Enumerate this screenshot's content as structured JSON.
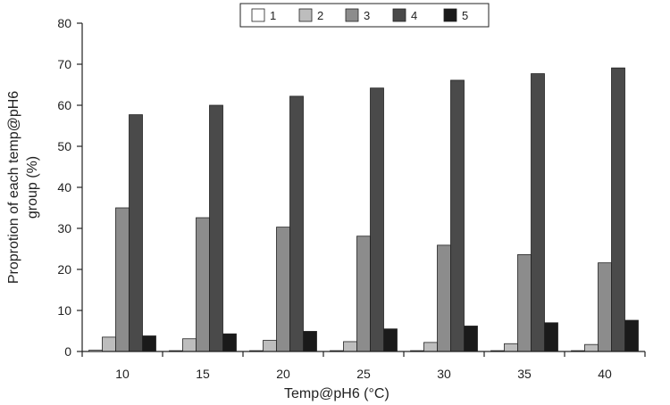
{
  "chart_data": {
    "type": "bar",
    "xlabel": "Temp@pH6 (°C)",
    "ylabel_lines": [
      "Proprotion of each temp@pH6",
      "group (%)"
    ],
    "categories": [
      "10",
      "15",
      "20",
      "25",
      "30",
      "35",
      "40"
    ],
    "ylim": [
      0,
      80
    ],
    "yticks": [
      0,
      10,
      20,
      30,
      40,
      50,
      60,
      70,
      80
    ],
    "grid": false,
    "legend_position": "top-center",
    "series": [
      {
        "name": "1",
        "color": "#ffffff",
        "values": [
          0.3,
          0.2,
          0.2,
          0.2,
          0.2,
          0.2,
          0.2
        ]
      },
      {
        "name": "2",
        "color": "#bdbdbd",
        "values": [
          3.5,
          3.1,
          2.7,
          2.4,
          2.2,
          1.9,
          1.7
        ]
      },
      {
        "name": "3",
        "color": "#8c8c8c",
        "values": [
          35.0,
          32.6,
          30.3,
          28.1,
          25.9,
          23.6,
          21.6
        ]
      },
      {
        "name": "4",
        "color": "#4a4a4a",
        "values": [
          57.7,
          60.0,
          62.2,
          64.2,
          66.1,
          67.7,
          69.1
        ]
      },
      {
        "name": "5",
        "color": "#1a1a1a",
        "values": [
          3.8,
          4.3,
          4.9,
          5.5,
          6.2,
          7.0,
          7.6
        ]
      }
    ]
  }
}
